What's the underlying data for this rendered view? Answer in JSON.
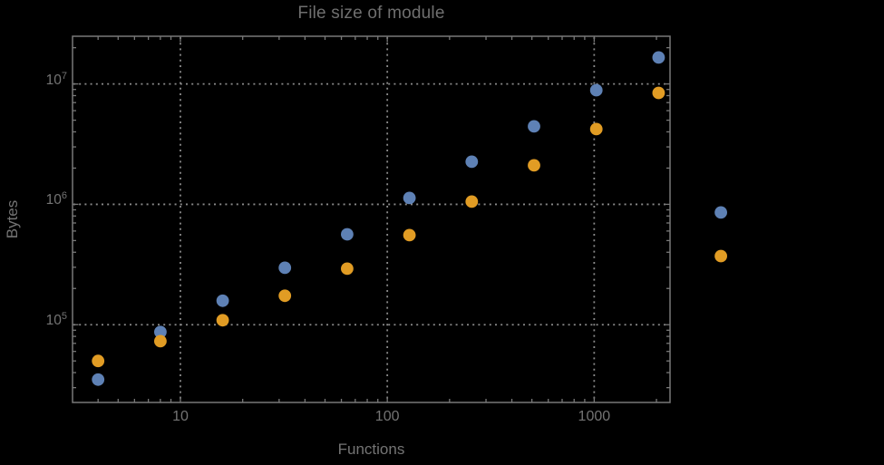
{
  "title": "File size of module",
  "axes": {
    "x_label": "Functions",
    "y_label": "Bytes",
    "x_tick_labels": [
      "10",
      "100",
      "1000"
    ],
    "y_tick_labels": [
      {
        "base": "10",
        "exponent": "5",
        "value": 100000
      },
      {
        "base": "10",
        "exponent": "6",
        "value": 1000000
      },
      {
        "base": "10",
        "exponent": "7",
        "value": 10000000
      }
    ]
  },
  "colors": {
    "background": "#000000",
    "frame": "#787878",
    "gridline": "#8a8a8a",
    "text": "#747474",
    "title_text": "#6f6f6f",
    "series_blue": "#5e81b5",
    "series_orange": "#e19c24"
  },
  "chart_data": {
    "type": "scatter",
    "title": "File size of module",
    "xlabel": "Functions",
    "ylabel": "Bytes",
    "xscale": "log",
    "yscale": "log",
    "xlim": [
      3.01,
      2326
    ],
    "ylim": [
      22600,
      24900000
    ],
    "grid": "dotted gridlines at powers of 10, frame ticks on all four sides",
    "legend": "none",
    "x_major_ticks": [
      10,
      100,
      1000
    ],
    "y_major_ticks": [
      100000,
      1000000,
      10000000
    ],
    "x": [
      4,
      8,
      16,
      32,
      64,
      128,
      256,
      512,
      1024,
      2048,
      4096
    ],
    "series": [
      {
        "name": "blue",
        "color": "#5e81b5",
        "values": [
          35000,
          87000,
          158000,
          297000,
          564000,
          1130000,
          2260000,
          4440000,
          8870000,
          16600000,
          856000
        ]
      },
      {
        "name": "orange",
        "color": "#e19c24",
        "values": [
          50000,
          73000,
          109000,
          174000,
          292000,
          555000,
          1054000,
          2110000,
          4220000,
          8420000,
          372000
        ]
      }
    ],
    "note": "points at x=4096 fall outside the plot frame on the right and are still drawn"
  }
}
